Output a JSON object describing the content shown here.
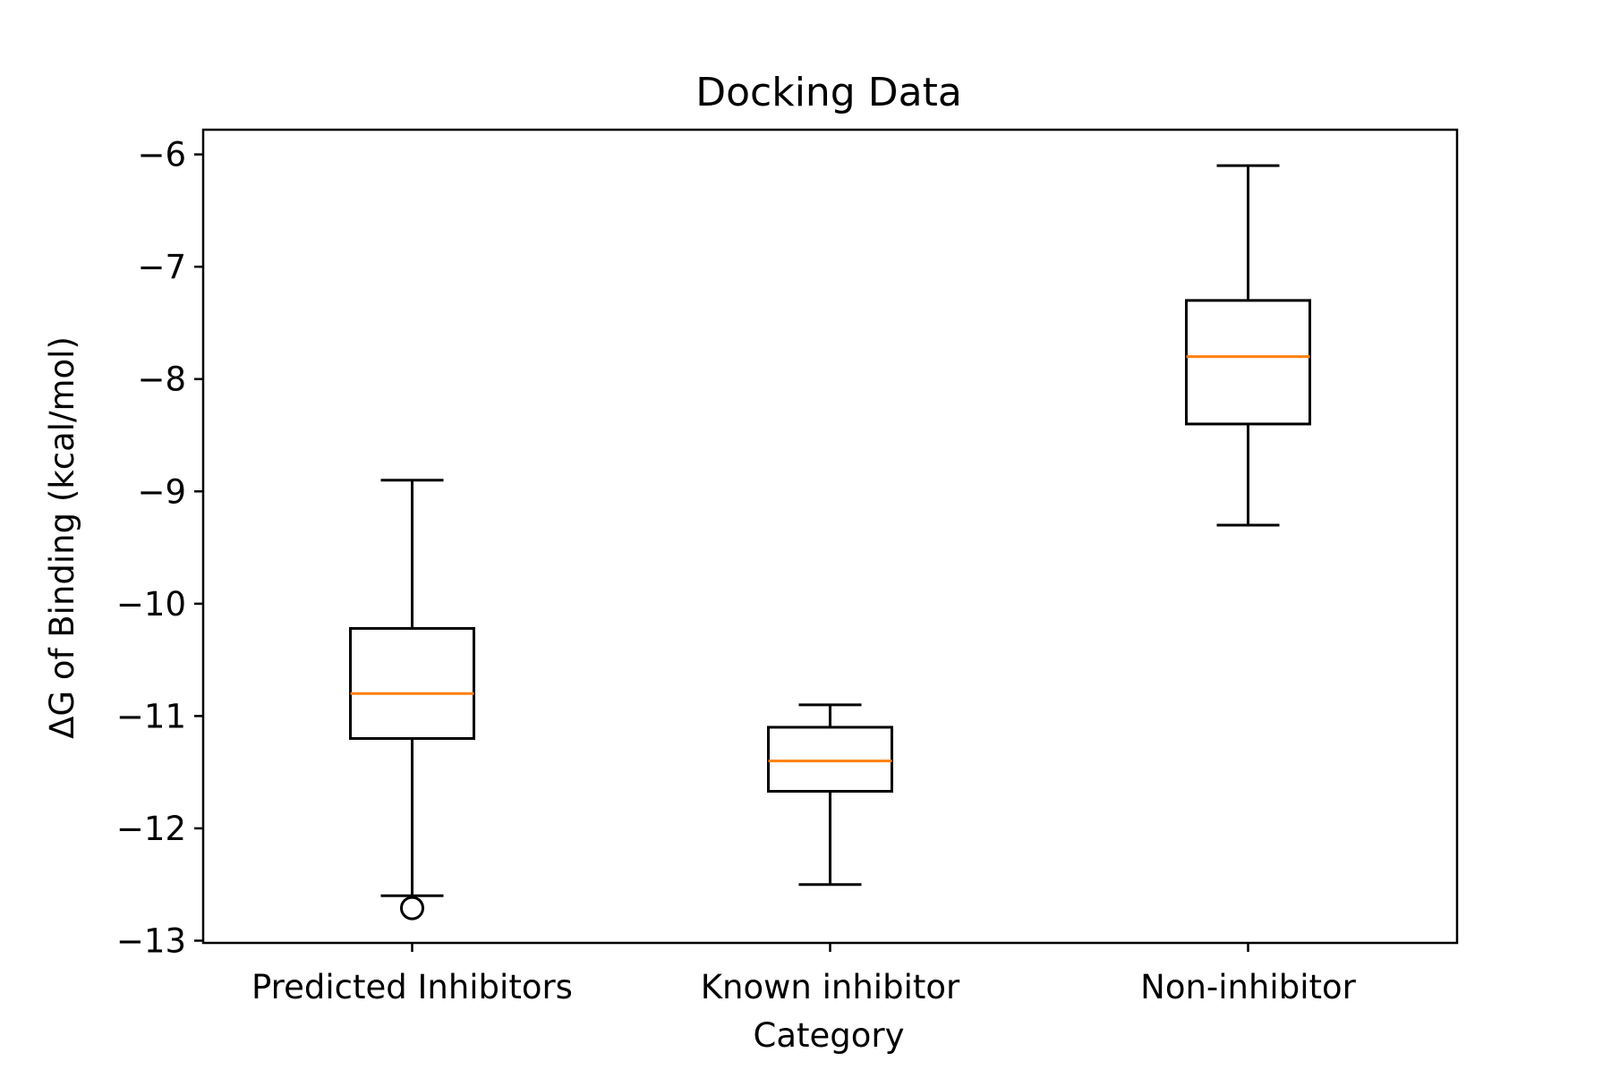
{
  "chart_data": {
    "type": "box",
    "title": "Docking Data",
    "xlabel": "Category",
    "ylabel": "ΔG of Binding (kcal/mol)",
    "ylim": [
      -13.02,
      -5.78
    ],
    "yticks": [
      -13,
      -12,
      -11,
      -10,
      -9,
      -8,
      -7,
      -6
    ],
    "ytick_labels": [
      "−13",
      "−12",
      "−11",
      "−10",
      "−9",
      "−8",
      "−7",
      "−6"
    ],
    "categories": [
      "Predicted Inhibitors",
      "Known inhibitor",
      "Non-inhibitor"
    ],
    "boxes": [
      {
        "whisker_low": -12.6,
        "q1": -11.2,
        "median": -10.8,
        "q3": -10.22,
        "whisker_high": -8.9,
        "outliers": [
          -12.71
        ]
      },
      {
        "whisker_low": -12.5,
        "q1": -11.67,
        "median": -11.4,
        "q3": -11.1,
        "whisker_high": -10.9,
        "outliers": []
      },
      {
        "whisker_low": -9.3,
        "q1": -8.4,
        "median": -7.8,
        "q3": -7.3,
        "whisker_high": -6.1,
        "outliers": []
      }
    ],
    "grid": false,
    "colors": {
      "box": "#000000",
      "median": "#ff7f0e",
      "axes": "#000000"
    }
  }
}
